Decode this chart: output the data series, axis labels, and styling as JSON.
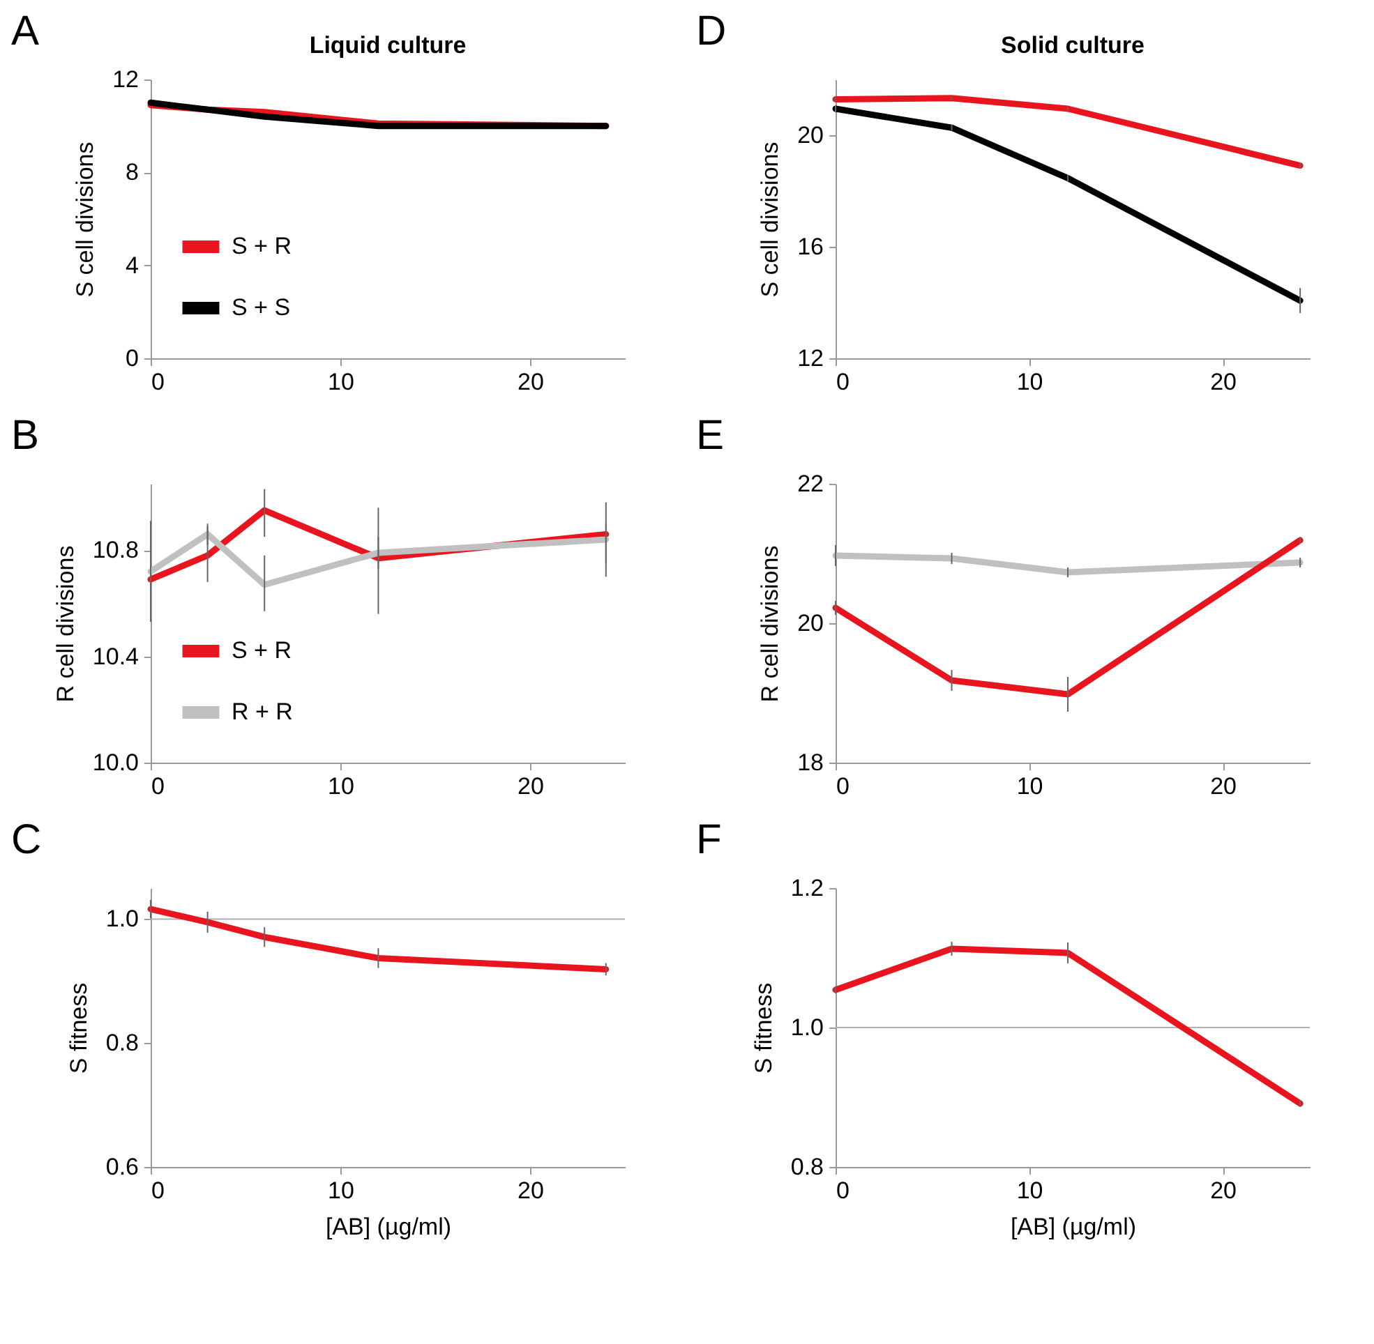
{
  "chart_data": [
    {
      "type": "line",
      "title": "Liquid culture",
      "annotations": [
        "A"
      ],
      "ylabel": "S cell divisions",
      "x": [
        0,
        3,
        6,
        12,
        24
      ],
      "xlim": [
        0,
        25
      ],
      "xticks": [
        0,
        10,
        20
      ],
      "ylim": [
        0,
        12
      ],
      "yticks": [
        0,
        4,
        8,
        12
      ],
      "grid": false,
      "legend": "bottom left",
      "line_style": "solid",
      "series": [
        {
          "name": "S + R",
          "color": "#e8141e",
          "values": [
            10.9,
            10.7,
            10.6,
            10.1,
            10.0
          ]
        },
        {
          "name": "S + S",
          "color": "#000000",
          "values": [
            11.0,
            10.7,
            10.4,
            10.0,
            10.0
          ]
        }
      ]
    },
    {
      "type": "line",
      "annotations": [
        "B"
      ],
      "ylabel": "R cell divisions",
      "x": [
        0,
        3,
        6,
        12,
        24
      ],
      "xlim": [
        0,
        25
      ],
      "xticks": [
        0,
        10,
        20
      ],
      "ylim": [
        10,
        11.05
      ],
      "yticks": [
        {
          "value": 10,
          "label": "10.0"
        },
        10.4,
        10.8
      ],
      "grid": false,
      "legend": "bottom left",
      "line_style": "solid",
      "series": [
        {
          "name": "S + R",
          "color": "#e8141e",
          "values": [
            10.69,
            10.78,
            10.95,
            10.77,
            10.86
          ],
          "errors": [
            [
              10.53,
              10.91
            ],
            [
              10.68,
              10.89
            ],
            [
              10.85,
              11.03
            ],
            [
              10.73,
              10.85
            ],
            [
              10.75,
              10.98
            ]
          ]
        },
        {
          "name": "R + R",
          "color": "#c0c0c0",
          "values": [
            10.72,
            10.86,
            10.67,
            10.79,
            10.84
          ],
          "errors": [
            [
              10.57,
              10.86
            ],
            [
              10.82,
              10.9
            ],
            [
              10.57,
              10.78
            ],
            [
              10.56,
              10.96
            ],
            [
              10.7,
              10.9
            ]
          ]
        }
      ]
    },
    {
      "type": "line",
      "annotations": [
        "C"
      ],
      "xlabel": "[AB] (µg/ml)",
      "ylabel": "S fitness",
      "x": [
        0,
        3,
        6,
        12,
        24
      ],
      "xlim": [
        0,
        25
      ],
      "xticks": [
        0,
        10,
        20
      ],
      "ylim": [
        0.6,
        1.05
      ],
      "yticks": [
        0.6,
        0.8,
        {
          "value": 1,
          "label": "1.0"
        }
      ],
      "grid": false,
      "line_style": "solid",
      "ref_lines": [
        {
          "axis": "y",
          "value": 1,
          "color": "#b0b0b0"
        }
      ],
      "series": [
        {
          "color": "#e8141e",
          "values": [
            1.016,
            0.995,
            0.971,
            0.937,
            0.919
          ],
          "errors": [
            0.015,
            0.017,
            0.016,
            0.016,
            0.01
          ]
        }
      ]
    },
    {
      "type": "line",
      "title": "Solid culture",
      "annotations": [
        "D"
      ],
      "ylabel": "S cell divisions",
      "x": [
        0,
        6,
        12,
        24
      ],
      "xlim": [
        0,
        24.5
      ],
      "xticks": [
        0,
        10,
        20
      ],
      "ylim": [
        12,
        22
      ],
      "yticks": [
        12,
        16,
        20
      ],
      "grid": false,
      "line_style": "solid",
      "series": [
        {
          "color": "#e8141e",
          "values": [
            21.29,
            21.33,
            20.95,
            18.91
          ],
          "errors": [
            0.08,
            0.06,
            0.06,
            0.1
          ]
        },
        {
          "color": "#000000",
          "values": [
            20.95,
            20.27,
            18.46,
            14.07
          ],
          "errors": [
            0.1,
            0.1,
            0.12,
            0.45
          ]
        }
      ]
    },
    {
      "type": "line",
      "annotations": [
        "E"
      ],
      "ylabel": "R cell divisions",
      "x": [
        0,
        6,
        12,
        24
      ],
      "xlim": [
        0,
        24.5
      ],
      "xticks": [
        0,
        10,
        20
      ],
      "ylim": [
        18,
        22
      ],
      "yticks": [
        18,
        20,
        22
      ],
      "grid": false,
      "line_style": "solid",
      "series": [
        {
          "color": "#c0c0c0",
          "values": [
            20.97,
            20.93,
            20.73,
            20.87
          ],
          "errors": [
            0.15,
            0.08,
            0.07,
            0.07
          ]
        },
        {
          "color": "#e8141e",
          "values": [
            20.22,
            19.18,
            18.98,
            21.19
          ],
          "errors": [
            0.1,
            0.15,
            0.25,
            0.05
          ]
        }
      ]
    },
    {
      "type": "line",
      "annotations": [
        "F"
      ],
      "xlabel": "[AB] (µg/ml)",
      "ylabel": "S fitness",
      "x": [
        0,
        6,
        12,
        24
      ],
      "xlim": [
        0,
        24.5
      ],
      "xticks": [
        0,
        10,
        20
      ],
      "ylim": [
        0.8,
        1.2
      ],
      "yticks": [
        {
          "value": 0.8,
          "label": "0.8"
        },
        {
          "value": 1,
          "label": "1.0"
        },
        {
          "value": 1.2,
          "label": "1.2"
        }
      ],
      "grid": false,
      "line_style": "solid",
      "ref_lines": [
        {
          "axis": "y",
          "value": 1,
          "color": "#b0b0b0"
        }
      ],
      "series": [
        {
          "color": "#e8141e",
          "values": [
            1.054,
            1.113,
            1.107,
            0.891
          ],
          "errors": [
            0.005,
            0.01,
            0.015,
            0.005
          ]
        }
      ]
    }
  ]
}
